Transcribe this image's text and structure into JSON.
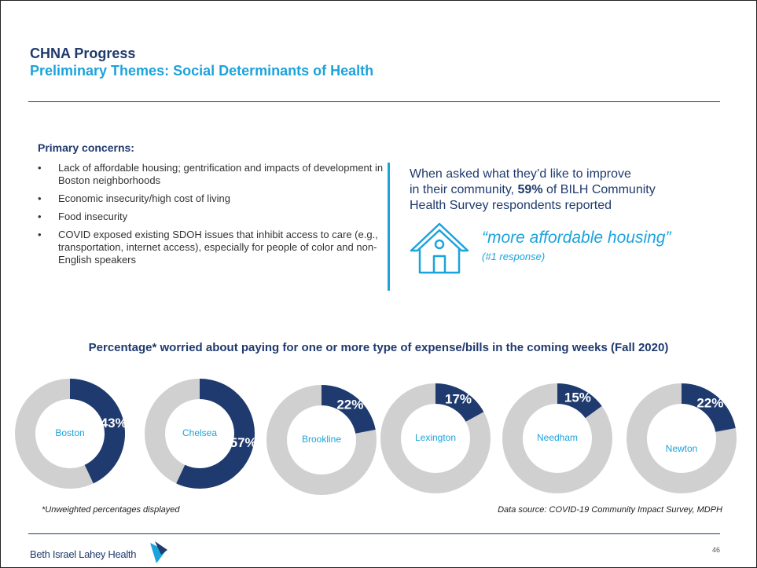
{
  "header": {
    "title": "CHNA Progress",
    "subtitle": "Preliminary Themes: Social Determinants of Health"
  },
  "concerns": {
    "heading": "Primary concerns:",
    "items": [
      "Lack of affordable housing; gentrification and impacts of development in Boston neighborhoods",
      "Economic insecurity/high cost of living",
      "Food insecurity",
      "COVID exposed existing SDOH issues that inhibit access to care (e.g., transportation, internet access), especially for people of color and non-English speakers"
    ]
  },
  "callout": {
    "intro_parts": [
      "When asked what they’d like to improve",
      "in their community, ",
      "59%",
      " of BILH Community",
      "Health Survey respondents reported"
    ],
    "quote": "“more affordable housing”",
    "note": "(#1 response)"
  },
  "chart_heading": "Percentage* worried about paying for one or more type of expense/bills in the coming weeks (Fall 2020)",
  "chart_data": [
    {
      "type": "donut",
      "title": "Boston",
      "values": [
        43
      ],
      "value_labels": [
        "43%"
      ],
      "color": "#1f3a6e"
    },
    {
      "type": "donut",
      "title": "Chelsea",
      "values": [
        57
      ],
      "value_labels": [
        "57%"
      ],
      "color": "#1f3a6e"
    },
    {
      "type": "donut",
      "title": "Brookline",
      "values": [
        22
      ],
      "value_labels": [
        "22%"
      ],
      "color": "#1f3a6e"
    },
    {
      "type": "donut",
      "title": "Lexington",
      "values": [
        17
      ],
      "value_labels": [
        "17%"
      ],
      "color": "#1f3a6e"
    },
    {
      "type": "donut",
      "title": "Needham",
      "values": [
        15
      ],
      "value_labels": [
        "15%"
      ],
      "color": "#1f3a6e"
    },
    {
      "type": "donut",
      "title": "Newton",
      "values": [
        22
      ],
      "value_labels": [
        "22%"
      ],
      "color": "#1f3a6e"
    }
  ],
  "footnote": "*Unweighted percentages displayed",
  "source": "Data source: COVID-19 Community Impact Survey, MDPH",
  "footer": {
    "logo": "Beth Israel Lahey Health",
    "page": "46"
  }
}
